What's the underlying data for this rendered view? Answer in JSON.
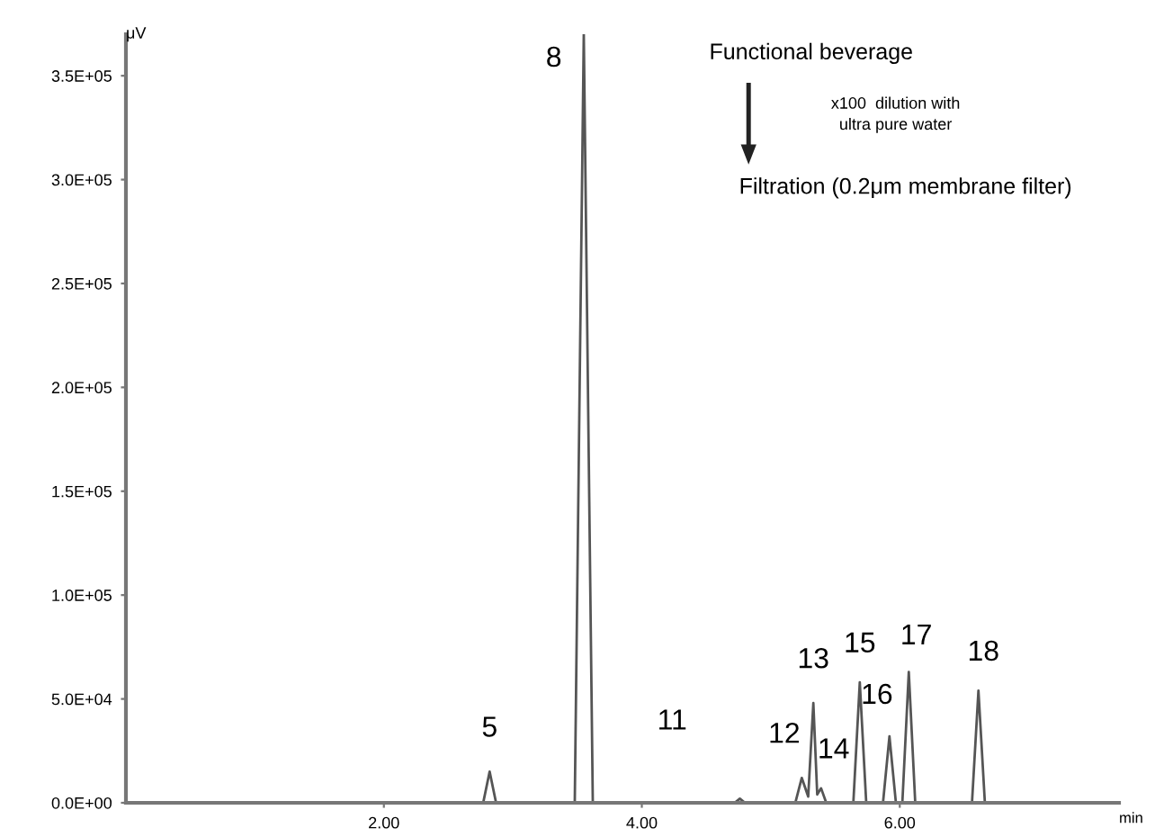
{
  "chart_data": {
    "type": "line",
    "xlabel": "min",
    "ylabel": "μV",
    "x": [
      0,
      2.77,
      2.82,
      2.87,
      3.48,
      3.55,
      3.62,
      4.72,
      4.76,
      4.8,
      5.19,
      5.24,
      5.29,
      5.33,
      5.36,
      5.39,
      5.43,
      5.64,
      5.69,
      5.74,
      5.87,
      5.92,
      5.97,
      6.02,
      6.07,
      6.12,
      6.56,
      6.61,
      6.66,
      7.7
    ],
    "series": [
      {
        "color": "#555555",
        "values": [
          0,
          0,
          15000,
          0,
          0,
          370000,
          0,
          0,
          2000,
          0,
          0,
          12000,
          3000,
          48000,
          4000,
          7000,
          0,
          0,
          58000,
          0,
          0,
          32000,
          0,
          0,
          63000,
          0,
          0,
          54000,
          0,
          0
        ]
      }
    ],
    "xlim": [
      0,
      7.7
    ],
    "ylim": [
      0,
      370000
    ],
    "xticks": [
      {
        "value": 2,
        "label": "2.00"
      },
      {
        "value": 4,
        "label": "4.00"
      },
      {
        "value": 6,
        "label": "6.00"
      }
    ],
    "yticks": [
      {
        "value": 0,
        "label": "0.0E+00"
      },
      {
        "value": 50000,
        "label": "5.0E+04"
      },
      {
        "value": 100000,
        "label": "1.0E+05"
      },
      {
        "value": 150000,
        "label": "1.5E+05"
      },
      {
        "value": 200000,
        "label": "2.0E+05"
      },
      {
        "value": 250000,
        "label": "2.5E+05"
      },
      {
        "value": 300000,
        "label": "3.0E+05"
      },
      {
        "value": 350000,
        "label": "3.5E+05"
      }
    ],
    "grid": false,
    "legend": false,
    "marker": "none",
    "line_style": "solid",
    "annotations": [
      {
        "text": "5",
        "x": 2.82,
        "y": 15000
      },
      {
        "text": "8",
        "x": 3.55,
        "y": 370000
      },
      "11",
      {
        "text": "12",
        "x": 5.24,
        "y": 12000
      },
      {
        "text": "13",
        "x": 5.33,
        "y": 48000
      },
      {
        "text": "14",
        "x": 5.39,
        "y": 7000
      },
      {
        "text": "15",
        "x": 5.69,
        "y": 58000
      },
      {
        "text": "16",
        "x": 5.92,
        "y": 32000
      },
      {
        "text": "17",
        "x": 6.07,
        "y": 63000
      },
      {
        "text": "18",
        "x": 6.61,
        "y": 54000
      },
      "Functional beverage",
      "x100  dilution with\nultra pure water",
      "Filtration (0.2μm membrane filter)"
    ]
  }
}
